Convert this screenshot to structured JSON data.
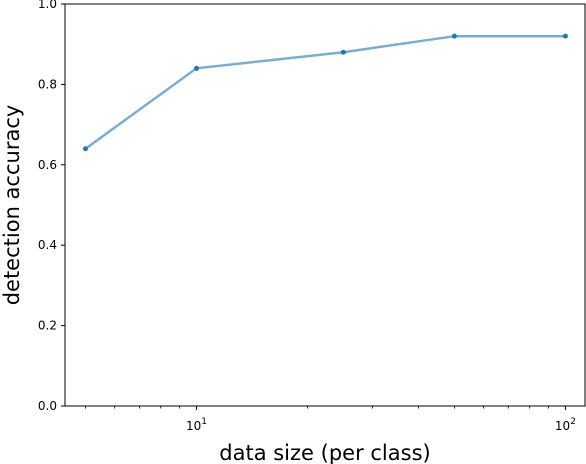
{
  "chart_data": {
    "type": "line",
    "title": "",
    "xlabel": "data size (per class)",
    "ylabel": "detection accuracy",
    "xscale": "log",
    "xlim": [
      4.4,
      113
    ],
    "ylim": [
      0,
      1
    ],
    "grid": false,
    "legend": "none",
    "x_ticks": [
      {
        "value": 10,
        "label": "10",
        "exp": "1"
      },
      {
        "value": 100,
        "label": "10",
        "exp": "2"
      }
    ],
    "y_ticks": [
      {
        "value": 0.0,
        "label": "0.0"
      },
      {
        "value": 0.2,
        "label": "0.2"
      },
      {
        "value": 0.4,
        "label": "0.4"
      },
      {
        "value": 0.6,
        "label": "0.6"
      },
      {
        "value": 0.8,
        "label": "0.8"
      },
      {
        "value": 1.0,
        "label": "1.0"
      }
    ],
    "series": [
      {
        "color": "#1f77b4",
        "x": [
          5,
          10,
          25,
          50,
          100
        ],
        "y": [
          0.64,
          0.84,
          0.88,
          0.92,
          0.92
        ]
      }
    ]
  }
}
